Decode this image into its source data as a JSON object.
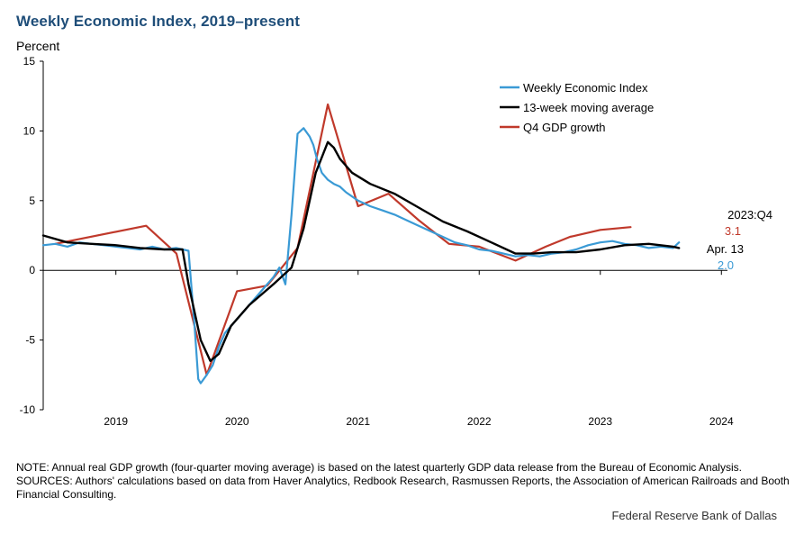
{
  "header": {
    "title": "Weekly Economic Index, 2019–present",
    "y_unit": "Percent"
  },
  "chart_data": {
    "type": "line",
    "title": "Weekly Economic Index, 2019–present",
    "ylabel": "Percent",
    "xlabel": "",
    "xlim": [
      2018.4,
      2024.05
    ],
    "ylim": [
      -10,
      15
    ],
    "x_ticks": [
      "2019",
      "2020",
      "2021",
      "2022",
      "2023",
      "2024"
    ],
    "x_tick_values": [
      2019.0,
      2020.0,
      2021.0,
      2022.0,
      2023.0,
      2024.0
    ],
    "y_ticks": [
      "-10",
      "-5",
      "0",
      "5",
      "10",
      "15"
    ],
    "y_tick_values": [
      -10,
      -5,
      0,
      5,
      10,
      15
    ],
    "grid": false,
    "legend_position": "top-right",
    "series": [
      {
        "name": "Weekly Economic Index",
        "color": "#3a9ad5",
        "x": [
          2018.4,
          2018.5,
          2018.6,
          2018.7,
          2018.8,
          2018.9,
          2019.0,
          2019.1,
          2019.2,
          2019.3,
          2019.4,
          2019.5,
          2019.6,
          2019.65,
          2019.68,
          2019.7,
          2019.75,
          2019.8,
          2019.85,
          2019.9,
          2020.0,
          2020.1,
          2020.2,
          2020.3,
          2020.35,
          2020.4,
          2020.45,
          2020.5,
          2020.55,
          2020.6,
          2020.63,
          2020.66,
          2020.7,
          2020.75,
          2020.8,
          2020.85,
          2020.9,
          2021.0,
          2021.1,
          2021.2,
          2021.3,
          2021.4,
          2021.5,
          2021.6,
          2021.7,
          2021.8,
          2021.9,
          2022.0,
          2022.1,
          2022.2,
          2022.3,
          2022.4,
          2022.5,
          2022.6,
          2022.7,
          2022.8,
          2022.9,
          2023.0,
          2023.1,
          2023.2,
          2023.3,
          2023.4,
          2023.5,
          2023.6,
          2023.65
        ],
        "values": [
          1.8,
          1.9,
          1.7,
          2.0,
          1.9,
          1.8,
          1.7,
          1.6,
          1.5,
          1.7,
          1.5,
          1.6,
          1.4,
          -4.0,
          -7.8,
          -8.1,
          -7.5,
          -6.8,
          -5.5,
          -4.5,
          -3.5,
          -2.5,
          -1.5,
          -0.5,
          0.2,
          -1.0,
          4.0,
          9.8,
          10.2,
          9.6,
          9.0,
          8.0,
          7.0,
          6.5,
          6.2,
          6.0,
          5.6,
          5.0,
          4.6,
          4.3,
          4.0,
          3.6,
          3.2,
          2.8,
          2.4,
          2.0,
          1.8,
          1.5,
          1.4,
          1.2,
          1.0,
          1.1,
          1.0,
          1.2,
          1.3,
          1.5,
          1.8,
          2.0,
          2.1,
          1.9,
          1.8,
          1.6,
          1.7,
          1.6,
          2.0
        ]
      },
      {
        "name": "13-week moving average",
        "color": "#000000",
        "x": [
          2018.4,
          2018.6,
          2018.8,
          2019.0,
          2019.2,
          2019.4,
          2019.55,
          2019.6,
          2019.7,
          2019.78,
          2019.85,
          2019.95,
          2020.1,
          2020.3,
          2020.45,
          2020.55,
          2020.65,
          2020.75,
          2020.8,
          2020.85,
          2020.95,
          2021.1,
          2021.3,
          2021.5,
          2021.7,
          2021.9,
          2022.1,
          2022.3,
          2022.45,
          2022.6,
          2022.8,
          2023.0,
          2023.2,
          2023.4,
          2023.6,
          2023.65
        ],
        "values": [
          2.5,
          2.0,
          1.9,
          1.8,
          1.6,
          1.5,
          1.5,
          -1.0,
          -5.0,
          -6.5,
          -6.0,
          -4.0,
          -2.5,
          -1.0,
          0.2,
          3.0,
          7.0,
          9.2,
          8.8,
          8.0,
          7.0,
          6.2,
          5.5,
          4.5,
          3.5,
          2.8,
          2.0,
          1.2,
          1.2,
          1.3,
          1.3,
          1.5,
          1.8,
          1.9,
          1.7,
          1.6
        ]
      },
      {
        "name": "Q4 GDP growth",
        "color": "#c0392b",
        "x": [
          2018.5,
          2019.25,
          2019.5,
          2019.75,
          2020.0,
          2020.25,
          2020.5,
          2020.75,
          2021.0,
          2021.25,
          2021.5,
          2021.75,
          2022.0,
          2022.3,
          2022.55,
          2022.75,
          2023.0,
          2023.25
        ],
        "values": [
          1.9,
          3.2,
          1.2,
          -7.5,
          -1.5,
          -1.1,
          1.6,
          11.9,
          4.6,
          5.5,
          3.6,
          1.9,
          1.7,
          0.7,
          1.7,
          2.4,
          2.9,
          3.1
        ]
      }
    ],
    "annotations": [
      {
        "text": "2023:Q4",
        "color": "#000000"
      },
      {
        "text": "3.1",
        "color": "#c0392b"
      },
      {
        "text": "Apr. 13",
        "color": "#000000"
      },
      {
        "text": "2.0",
        "color": "#3a9ad5"
      }
    ]
  },
  "notes": {
    "note": "NOTE: Annual real GDP growth (four-quarter moving average) is based on the latest quarterly GDP data release from the Bureau of Economic Analysis.",
    "sources": "SOURCES: Authors' calculations based on data from Haver Analytics, Redbook Research, Rasmussen Reports, the Association of American Railroads and Booth Financial Consulting.",
    "attribution": "Federal Reserve Bank of Dallas"
  }
}
